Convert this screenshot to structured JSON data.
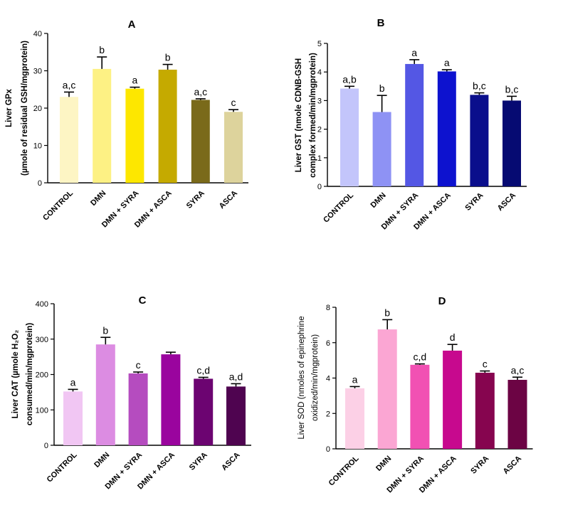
{
  "chart_data": [
    {
      "type": "bar",
      "panel_letter": "A",
      "ylabel_lines": [
        "Liver GPx",
        "(µmole of residual GSH/mgprotein)"
      ],
      "ylim": [
        0,
        40
      ],
      "yticks": [
        0,
        10,
        20,
        30,
        40
      ],
      "categories": [
        "CONTROL",
        "DMN",
        "DMN + SYRA",
        "DMN + ASCA",
        "SYRA",
        "ASCA"
      ],
      "values": [
        23,
        30.5,
        25.2,
        30.3,
        22.2,
        19
      ],
      "errors": [
        1.3,
        3.2,
        0.4,
        1.4,
        0.3,
        0.6
      ],
      "annotations": [
        "a,c",
        "b",
        "a",
        "b",
        "a,c",
        "c"
      ],
      "colors": [
        "#fdf5c4",
        "#fdf184",
        "#fde700",
        "#c5aa00",
        "#7a6a1a",
        "#ddd39c"
      ]
    },
    {
      "type": "bar",
      "panel_letter": "B",
      "ylabel_lines": [
        "Liver GST (nmole CDNB-GSH",
        "complex formed/min/mgprotein)"
      ],
      "ylim": [
        0,
        5
      ],
      "yticks": [
        0,
        1,
        2,
        3,
        4,
        5
      ],
      "categories": [
        "CONTROL",
        "DMN",
        "DMN + SYRA",
        "DMN + ASCA",
        "SYRA",
        "ASCA"
      ],
      "values": [
        3.42,
        2.6,
        4.28,
        4.02,
        3.2,
        3.0
      ],
      "errors": [
        0.08,
        0.58,
        0.15,
        0.06,
        0.07,
        0.15
      ],
      "annotations": [
        "a,b",
        "b",
        "a",
        "a",
        "b,c",
        "b,c"
      ],
      "colors": [
        "#c3c5fb",
        "#8e92f4",
        "#5457e4",
        "#0d12cf",
        "#0a0e8c",
        "#060a72"
      ]
    },
    {
      "type": "bar",
      "panel_letter": "C",
      "ylabel_lines": [
        "Liver CAT (µmole H₂O₂",
        "consumed/min/mgprotein)"
      ],
      "ylim": [
        0,
        400
      ],
      "yticks": [
        0,
        100,
        200,
        300,
        400
      ],
      "categories": [
        "CONTROL",
        "DMN",
        "DMN + SYRA",
        "DMN + ASCA",
        "SYRA",
        "ASCA"
      ],
      "values": [
        152,
        285,
        203,
        257,
        188,
        166
      ],
      "errors": [
        6,
        20,
        4,
        6,
        4,
        8
      ],
      "annotations": [
        "a",
        "b",
        "c",
        "",
        "c,d",
        "a,d"
      ],
      "colors": [
        "#f1c6f3",
        "#dc8ce2",
        "#b54cbf",
        "#9a049e",
        "#6c0471",
        "#4f0450"
      ]
    },
    {
      "type": "bar",
      "panel_letter": "D",
      "ylabel_lines": [
        "Liver SOD (nmoles of epinephrine",
        "oxidized/min/mgprotein)"
      ],
      "ylim": [
        0,
        8
      ],
      "yticks": [
        0,
        2,
        4,
        6,
        8
      ],
      "categories": [
        "CONTROL",
        "DMN",
        "DMN + SYRA",
        "DMN + ASCA",
        "SYRA",
        "ASCA"
      ],
      "values": [
        3.42,
        6.75,
        4.75,
        5.55,
        4.3,
        3.9
      ],
      "errors": [
        0.1,
        0.55,
        0.05,
        0.35,
        0.1,
        0.15
      ],
      "annotations": [
        "a",
        "b",
        "c,d",
        "d",
        "c",
        "a,c"
      ],
      "colors": [
        "#fcd0e6",
        "#fba6d3",
        "#f151b3",
        "#c7098e",
        "#86054f",
        "#6c0444"
      ]
    }
  ]
}
